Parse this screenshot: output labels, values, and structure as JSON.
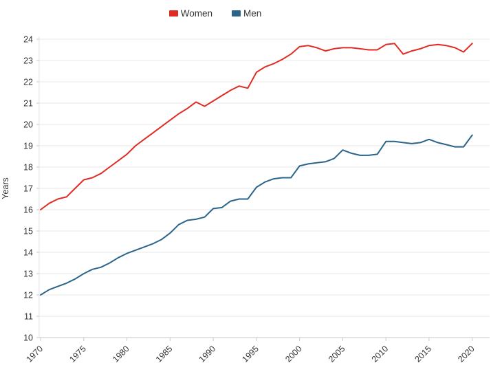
{
  "chart": {
    "legend_position": "top",
    "background": "#ffffff",
    "gridline_color": "#e7e7e7",
    "axis_line_color": "#c9c9c9",
    "tick_label_color": "#333333"
  },
  "chart_data": {
    "type": "line",
    "title": "",
    "xlabel": "",
    "ylabel": "Years",
    "ylim": [
      10,
      24
    ],
    "xlim": [
      1970,
      2020
    ],
    "yticks": [
      10,
      11,
      12,
      13,
      14,
      15,
      16,
      17,
      18,
      19,
      20,
      21,
      22,
      23,
      24
    ],
    "xticks": [
      1970,
      1975,
      1980,
      1985,
      1990,
      1995,
      2000,
      2005,
      2010,
      2015,
      2020
    ],
    "grid": "horizontal",
    "legend_position": "top",
    "x": [
      1970,
      1971,
      1972,
      1973,
      1974,
      1975,
      1976,
      1977,
      1978,
      1979,
      1980,
      1981,
      1982,
      1983,
      1984,
      1985,
      1986,
      1987,
      1988,
      1989,
      1990,
      1991,
      1992,
      1993,
      1994,
      1995,
      1996,
      1997,
      1998,
      1999,
      2000,
      2001,
      2002,
      2003,
      2004,
      2005,
      2006,
      2007,
      2008,
      2009,
      2010,
      2011,
      2012,
      2013,
      2014,
      2015,
      2016,
      2017,
      2018,
      2019,
      2020
    ],
    "series": [
      {
        "name": "Women",
        "color": "#e02b24",
        "values": [
          16.0,
          16.3,
          16.5,
          16.6,
          17.0,
          17.4,
          17.5,
          17.7,
          18.0,
          18.3,
          18.6,
          19.0,
          19.3,
          19.6,
          19.9,
          20.2,
          20.5,
          20.75,
          21.05,
          20.85,
          21.1,
          21.35,
          21.6,
          21.8,
          21.7,
          22.45,
          22.7,
          22.85,
          23.05,
          23.3,
          23.65,
          23.7,
          23.6,
          23.45,
          23.55,
          23.6,
          23.6,
          23.55,
          23.5,
          23.5,
          23.75,
          23.8,
          23.3,
          23.45,
          23.55,
          23.7,
          23.75,
          23.7,
          23.6,
          23.4,
          23.8
        ]
      },
      {
        "name": "Men",
        "color": "#2a648a",
        "values": [
          12.0,
          12.25,
          12.4,
          12.55,
          12.75,
          13.0,
          13.2,
          13.3,
          13.5,
          13.75,
          13.95,
          14.1,
          14.25,
          14.4,
          14.6,
          14.9,
          15.3,
          15.5,
          15.55,
          15.65,
          16.05,
          16.1,
          16.4,
          16.5,
          16.5,
          17.05,
          17.3,
          17.45,
          17.5,
          17.5,
          18.05,
          18.15,
          18.2,
          18.25,
          18.4,
          18.8,
          18.65,
          18.55,
          18.55,
          18.6,
          19.2,
          19.2,
          19.15,
          19.1,
          19.15,
          19.3,
          19.15,
          19.05,
          18.95,
          18.95,
          19.5
        ]
      }
    ]
  }
}
